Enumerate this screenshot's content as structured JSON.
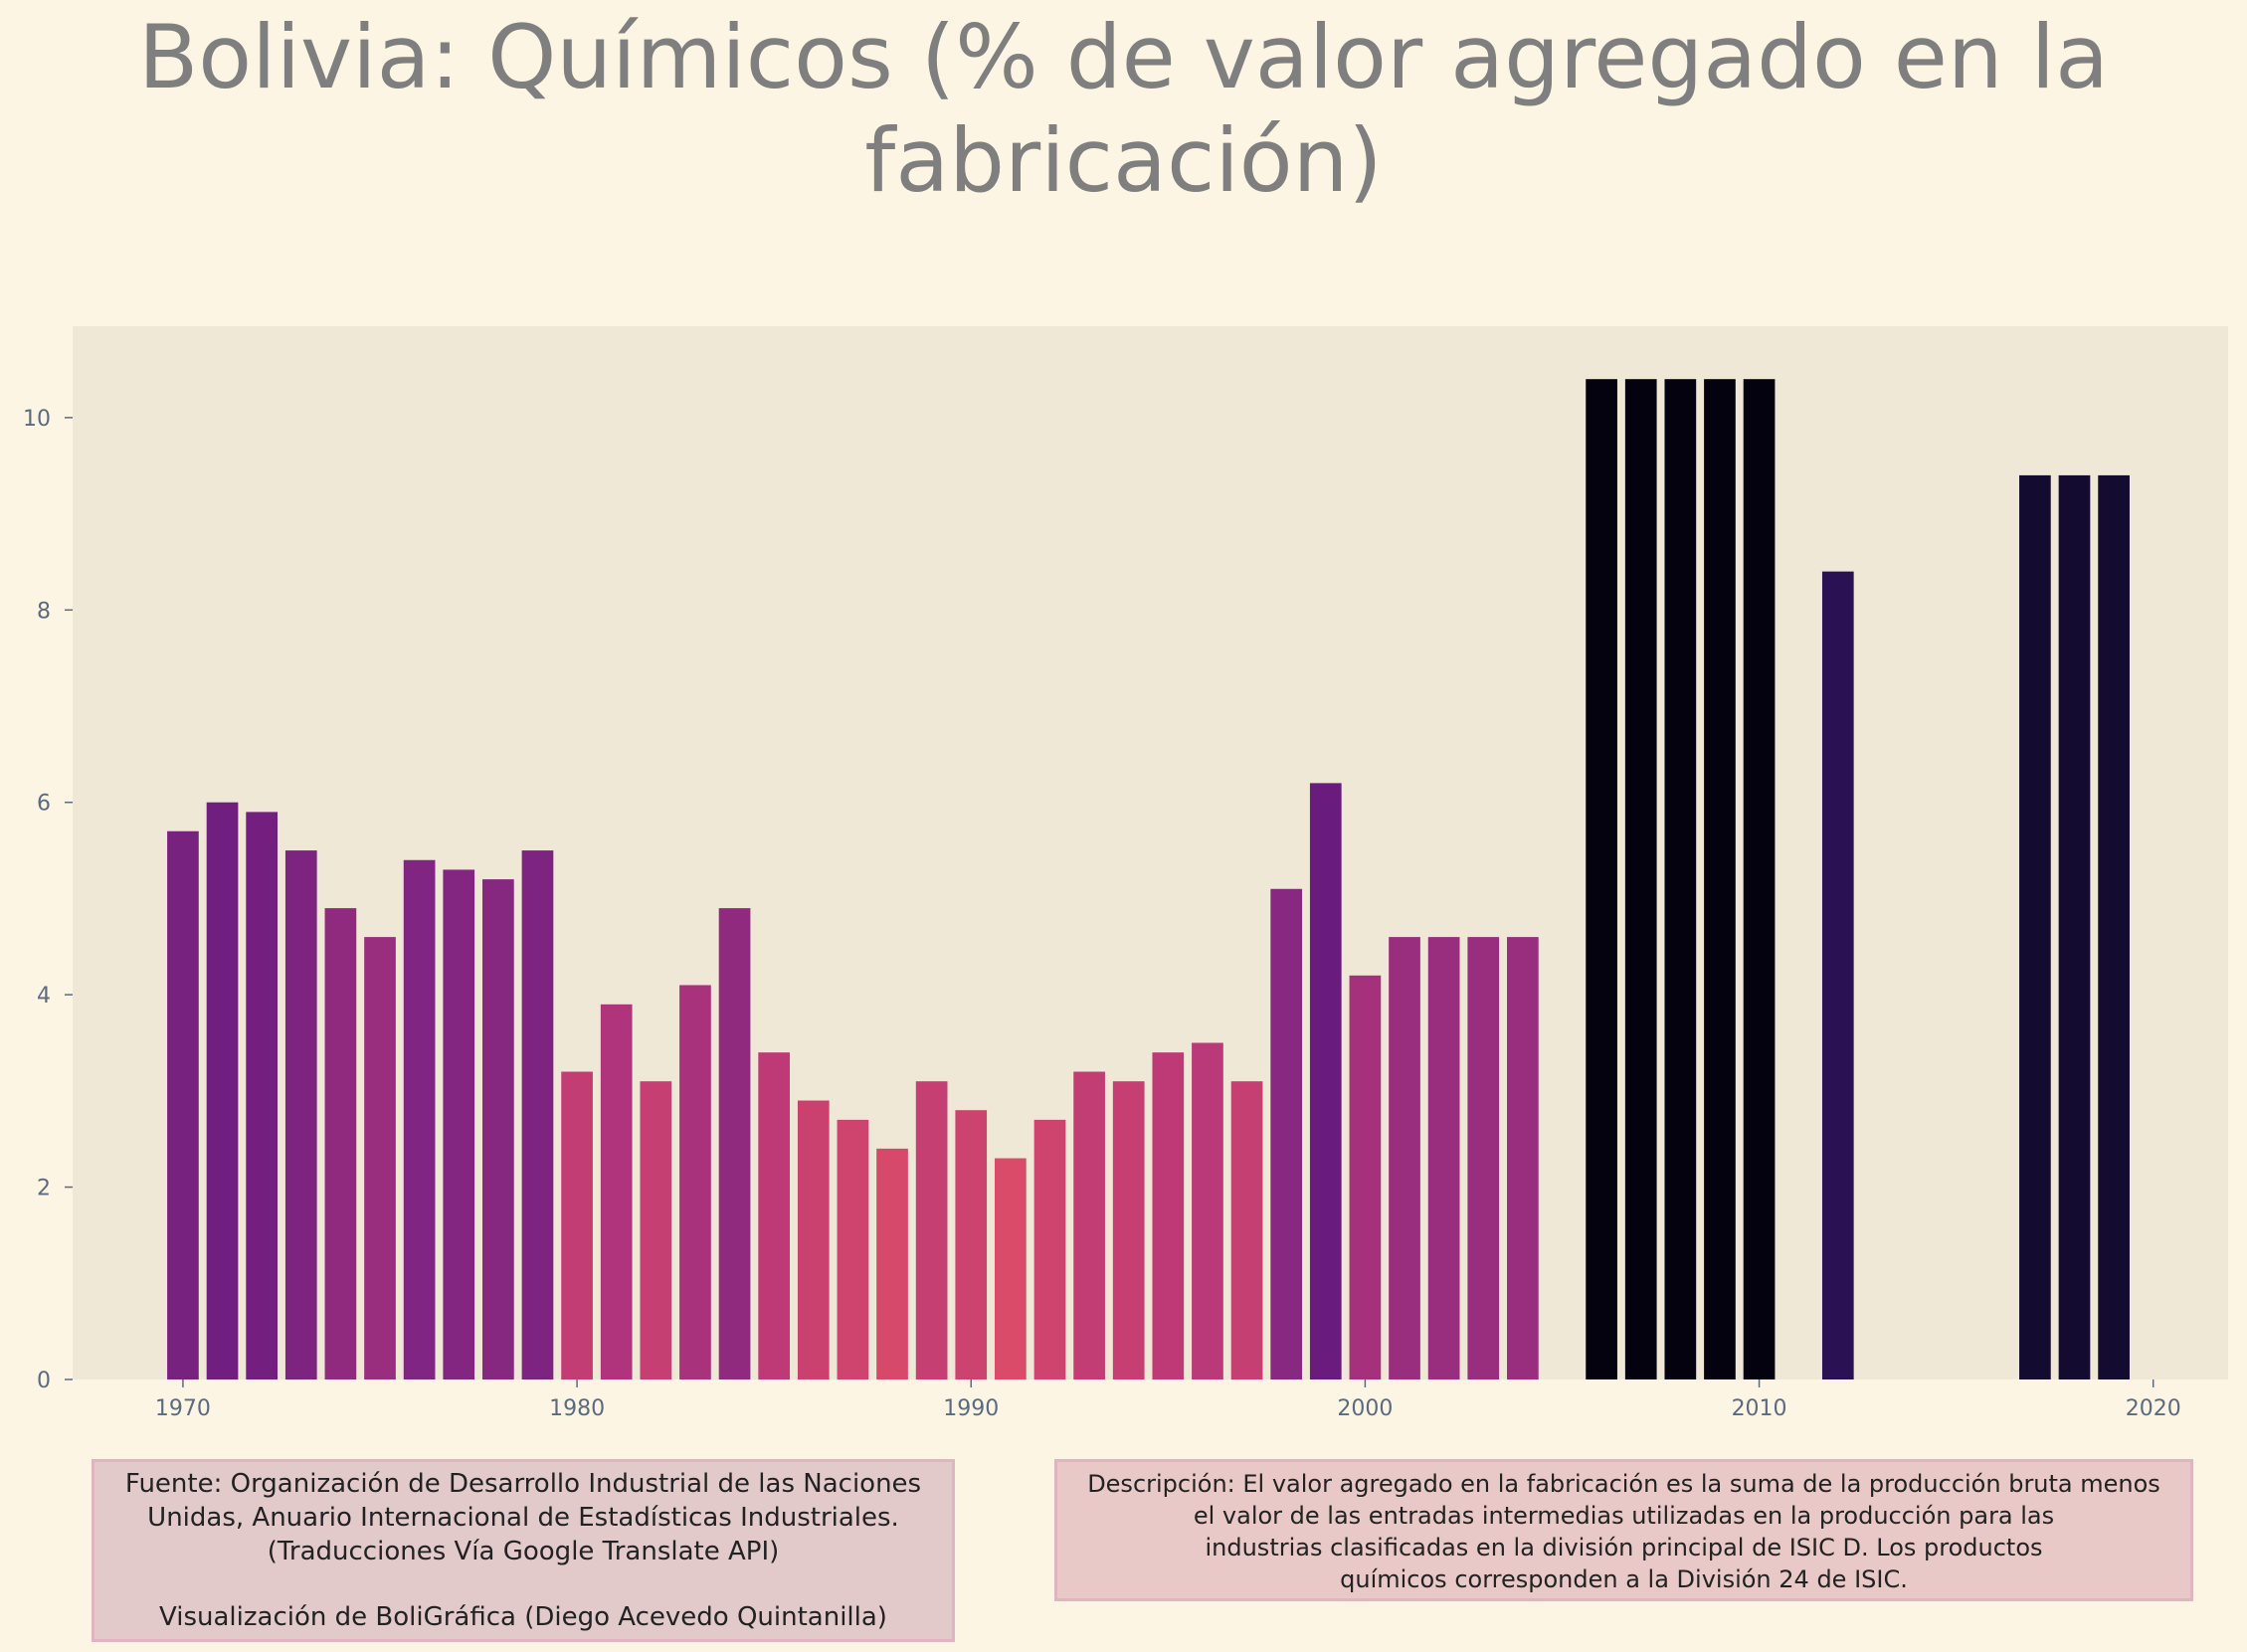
{
  "chart_data": {
    "type": "bar",
    "title": "Bolivia:  Químicos (% de valor agregado en la fabricación)",
    "xlabel": "",
    "ylabel": "",
    "x": [
      1970,
      1971,
      1972,
      1973,
      1974,
      1975,
      1976,
      1977,
      1978,
      1979,
      1980,
      1981,
      1982,
      1983,
      1984,
      1985,
      1986,
      1987,
      1988,
      1989,
      1990,
      1991,
      1992,
      1993,
      1994,
      1995,
      1996,
      1997,
      1998,
      1999,
      2000,
      2001,
      2002,
      2003,
      2004,
      2006,
      2007,
      2008,
      2009,
      2010,
      2012,
      2017,
      2018,
      2019
    ],
    "values": [
      5.7,
      6.0,
      5.9,
      5.5,
      4.9,
      4.6,
      5.4,
      5.3,
      5.2,
      5.5,
      3.2,
      3.9,
      3.1,
      4.1,
      4.9,
      3.4,
      2.9,
      2.7,
      2.4,
      3.1,
      2.8,
      2.3,
      2.7,
      3.2,
      3.1,
      3.4,
      3.5,
      3.1,
      5.1,
      6.2,
      4.2,
      4.6,
      4.6,
      4.6,
      4.6,
      10.4,
      10.4,
      10.4,
      10.4,
      10.4,
      8.4,
      9.4,
      9.4,
      9.4
    ],
    "xlim": [
      1967.2,
      2021.9
    ],
    "ylim": [
      0,
      10.95
    ],
    "xticks": [
      "1970",
      "1980",
      "1990",
      "2000",
      "2010",
      "2020"
    ],
    "yticks": [
      "0",
      "2",
      "4",
      "6",
      "8",
      "10"
    ],
    "grid": false,
    "colormap": "magma (bar color by value)",
    "colors": {
      "background": "#fdf5e4",
      "plot_background": "#f0e8d6",
      "title": "#7f7f7f",
      "tick_label": "#5a6b80"
    }
  },
  "source": {
    "lines": [
      "Fuente: Organización de Desarrollo Industrial de las Naciones",
      "Unidas, Anuario Internacional de Estadísticas Industriales.",
      "(Traducciones Vía Google Translate API)",
      "Visualización de BoliGráfica (Diego Acevedo Quintanilla)"
    ]
  },
  "description": {
    "lines": [
      "Descripción: El valor agregado en la fabricación es la suma de la producción bruta menos",
      "el valor de las entradas intermedias utilizadas en la producción para las",
      "industrias clasificadas en la división principal de ISIC D. Los productos",
      "químicos corresponden a la División 24 de ISIC."
    ]
  }
}
